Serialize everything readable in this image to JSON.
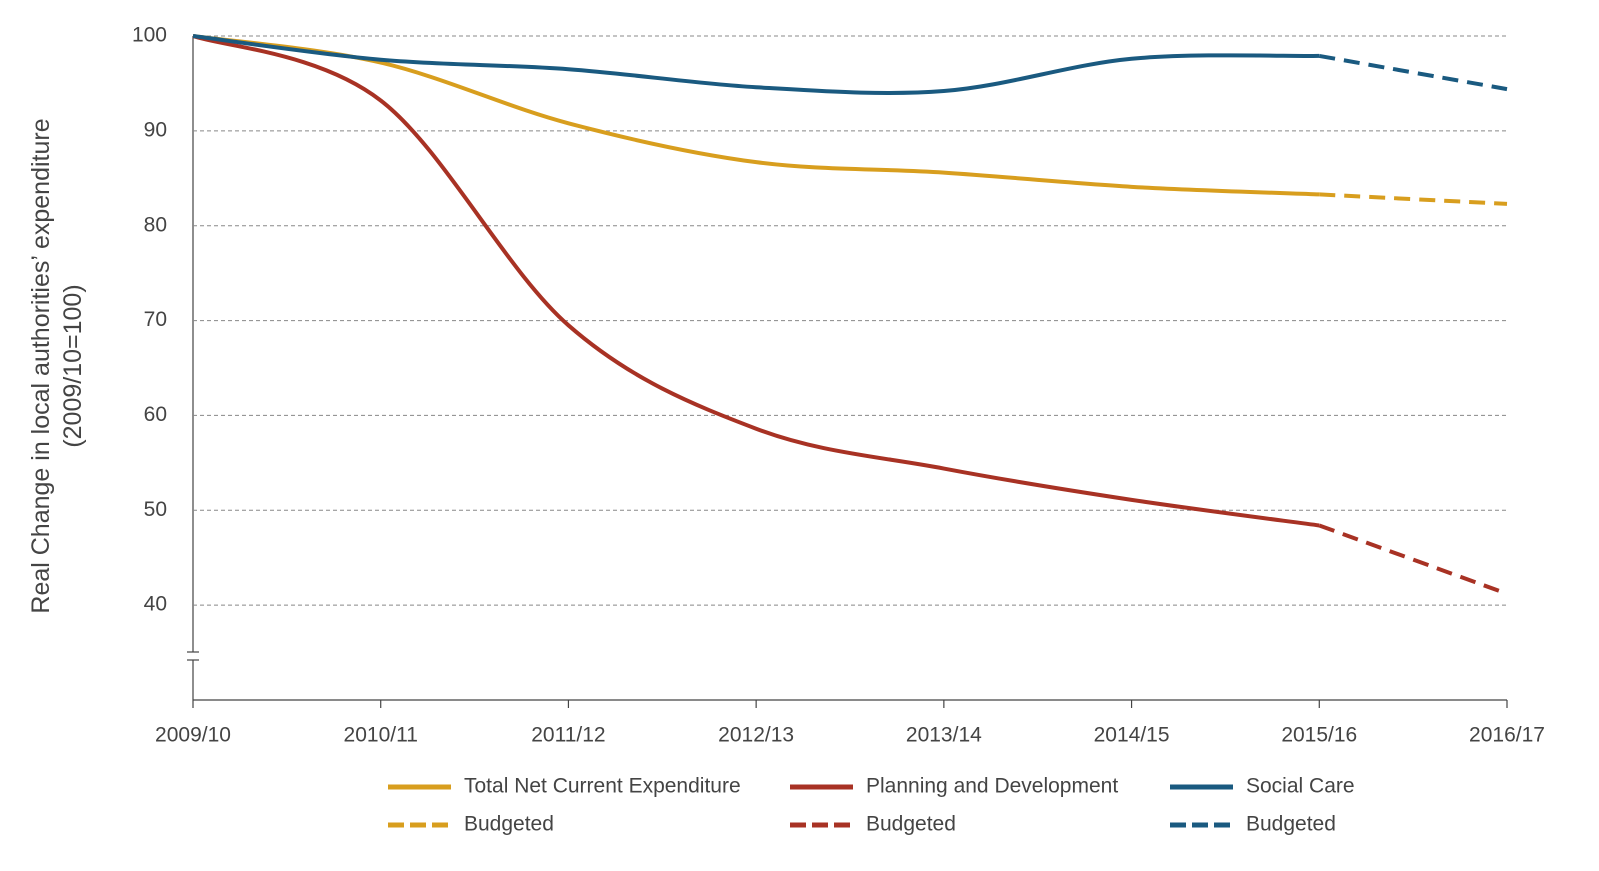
{
  "chart_data": {
    "type": "line",
    "y_label_lines": [
      "Real Change in local authorities’ expenditure",
      "(2009/10=100)"
    ],
    "categories": [
      "2009/10",
      "2010/11",
      "2011/12",
      "2012/13",
      "2013/14",
      "2014/15",
      "2015/16",
      "2016/17"
    ],
    "series": [
      {
        "name": "Total Net Current Expenditure",
        "color": "#d89e1e",
        "dashed": false,
        "values": [
          100,
          97.2,
          90.8,
          86.7,
          85.6,
          84.1,
          83.3,
          null
        ]
      },
      {
        "name": "Budgeted",
        "color": "#d89e1e",
        "dashed": true,
        "values": [
          null,
          null,
          null,
          null,
          null,
          null,
          83.3,
          82.3
        ]
      },
      {
        "name": "Planning and Development",
        "color": "#a83224",
        "dashed": false,
        "values": [
          100,
          93.2,
          69.5,
          58.6,
          54.4,
          51.1,
          48.4,
          null
        ]
      },
      {
        "name": "Budgeted",
        "color": "#a83224",
        "dashed": true,
        "values": [
          null,
          null,
          null,
          null,
          null,
          null,
          48.4,
          41.2
        ]
      },
      {
        "name": "Social Care",
        "color": "#1a5a80",
        "dashed": false,
        "values": [
          100,
          97.5,
          96.5,
          94.6,
          94.2,
          97.6,
          97.9,
          null
        ]
      },
      {
        "name": "Budgeted",
        "color": "#1a5a80",
        "dashed": true,
        "values": [
          null,
          null,
          null,
          null,
          null,
          null,
          97.9,
          94.4
        ]
      }
    ],
    "ylim": [
      30,
      100
    ],
    "yticks": [
      40,
      50,
      60,
      70,
      80,
      90,
      100
    ],
    "grid": true
  }
}
